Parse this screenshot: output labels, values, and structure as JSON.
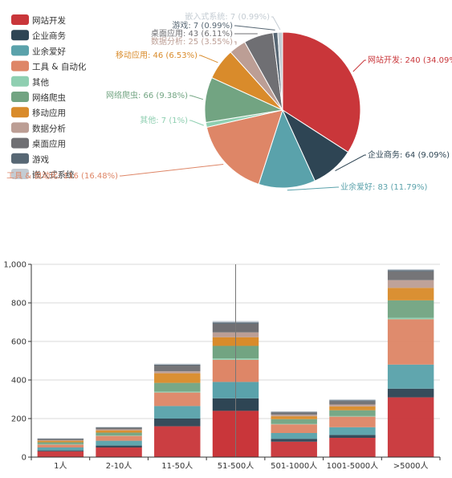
{
  "chart_data": [
    {
      "type": "pie",
      "legend_position": "left",
      "labels": [
        "网站开发",
        "企业商务",
        "业余爱好",
        "工具 & 自动化",
        "其他",
        "网络爬虫",
        "移动应用",
        "数据分析",
        "桌面应用",
        "游戏",
        "嵌入式系统"
      ],
      "values": [
        240,
        64,
        83,
        116,
        7,
        66,
        46,
        25,
        43,
        7,
        7
      ],
      "percents": [
        "34.09%",
        "9.09%",
        "11.79%",
        "16.48%",
        "1%",
        "9.38%",
        "6.53%",
        "3.55%",
        "6.11%",
        "0.99%",
        "0.99%"
      ],
      "slice_labels": [
        "网站开发: 240 (34.09%)",
        "企业商务: 64 (9.09%)",
        "业余爱好: 83 (11.79%)",
        "工具 & 自动化: 116 (16.48%)",
        "其他: 7 (1%)",
        "网络爬虫: 66 (9.38%)",
        "移动应用: 46 (6.53%)",
        "数据分析: 25 (3.55%)",
        "桌面应用: 43 (6.11%)",
        "游戏: 7 (0.99%)",
        "嵌入式系统: 7 (0.99%)"
      ],
      "colors": [
        "#c9363a",
        "#2e4554",
        "#5aa2ab",
        "#de8667",
        "#8fcfb1",
        "#72a482",
        "#d98b2b",
        "#bc9e95",
        "#6f6f73",
        "#576774",
        "#c4ccd3"
      ]
    },
    {
      "type": "bar",
      "stacked": true,
      "categories": [
        "1人",
        "2-10人",
        "11-50人",
        "51-500人",
        "501-1000人",
        "1001-5000人",
        ">5000人"
      ],
      "ylim": [
        0,
        1000
      ],
      "yticks": [
        "0",
        "200",
        "400",
        "600",
        "800",
        "1,000"
      ],
      "grid": true,
      "highlighted_category": "51-500人",
      "series": [
        {
          "name": "网站开发",
          "values": [
            30,
            50,
            160,
            240,
            80,
            100,
            310
          ]
        },
        {
          "name": "企业商务",
          "values": [
            5,
            10,
            40,
            65,
            15,
            15,
            45
          ]
        },
        {
          "name": "业余爱好",
          "values": [
            15,
            25,
            65,
            85,
            30,
            40,
            125
          ]
        },
        {
          "name": "工具 & 自动化",
          "values": [
            15,
            25,
            70,
            115,
            45,
            55,
            235
          ]
        },
        {
          "name": "其他",
          "values": [
            2,
            2,
            5,
            7,
            2,
            3,
            8
          ]
        },
        {
          "name": "网络爬虫",
          "values": [
            10,
            15,
            45,
            65,
            25,
            30,
            90
          ]
        },
        {
          "name": "移动应用",
          "values": [
            8,
            12,
            50,
            45,
            15,
            20,
            65
          ]
        },
        {
          "name": "数据分析",
          "values": [
            3,
            5,
            10,
            25,
            8,
            10,
            40
          ]
        },
        {
          "name": "桌面应用",
          "values": [
            6,
            8,
            30,
            45,
            12,
            17,
            45
          ]
        },
        {
          "name": "游戏",
          "values": [
            2,
            2,
            5,
            7,
            3,
            5,
            7
          ]
        },
        {
          "name": "嵌入式系统",
          "values": [
            2,
            3,
            5,
            7,
            2,
            5,
            5
          ]
        }
      ]
    }
  ]
}
